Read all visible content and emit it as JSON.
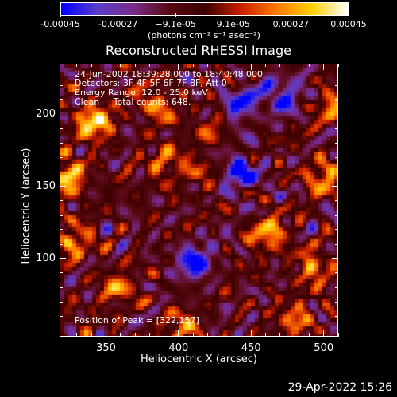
{
  "colorbar": {
    "ticks": [
      "-0.00045",
      "-0.00027",
      "−9.1e-05",
      "9.1e-05",
      "0.00027",
      "0.00045"
    ],
    "unit_label": "(photons cm⁻² s⁻¹ asec⁻²)",
    "gradient": [
      "#0000ff",
      "#5a3fcc",
      "#7a2a8a",
      "#5a0a14",
      "#3a0000",
      "#c81e00",
      "#ff7800",
      "#ffd000",
      "#ffffff"
    ]
  },
  "title": "Reconstructed RHESSI Image",
  "annotations": {
    "line1": "24-Jun-2002 18:39:28.000 to 18:40:48.000",
    "line2": "Detectors: 3F 4F 5F 6F 7F 8F, Att 0",
    "line3": "Energy Range: 12.0 - 25.0 keV",
    "line4": "Clean     Total counts: 648.",
    "peak": "Position of Peak = [322,157]"
  },
  "footer": {
    "timestamp": "29-Apr-2022 15:26"
  },
  "chart_data": {
    "type": "heatmap",
    "title": "Reconstructed RHESSI Image",
    "xlabel": "Heliocentric X (arcsec)",
    "ylabel": "Heliocentric Y (arcsec)",
    "xlim": [
      318,
      510
    ],
    "ylim": [
      46,
      235
    ],
    "xticks": [
      "350",
      "400",
      "450",
      "500"
    ],
    "yticks": [
      "200",
      "150",
      "100"
    ],
    "colorbar_range": [
      -0.00045,
      0.00045
    ],
    "peak_position": [
      322,
      157
    ],
    "bright_regions": [
      {
        "x": 340,
        "y": 197,
        "value": 0.00045
      },
      {
        "x": 322,
        "y": 157,
        "value": 0.00045
      },
      {
        "x": 325,
        "y": 112,
        "value": 0.0003
      },
      {
        "x": 383,
        "y": 208,
        "value": 0.0003
      },
      {
        "x": 390,
        "y": 168,
        "value": 0.00027
      },
      {
        "x": 355,
        "y": 80,
        "value": 0.00027
      },
      {
        "x": 415,
        "y": 160,
        "value": 0.0002
      },
      {
        "x": 425,
        "y": 195,
        "value": 0.0002
      },
      {
        "x": 460,
        "y": 118,
        "value": 0.00035
      },
      {
        "x": 498,
        "y": 158,
        "value": 0.0003
      },
      {
        "x": 492,
        "y": 95,
        "value": 0.0003
      },
      {
        "x": 480,
        "y": 60,
        "value": 0.00027
      },
      {
        "x": 400,
        "y": 52,
        "value": 0.00025
      },
      {
        "x": 505,
        "y": 205,
        "value": 0.00025
      }
    ],
    "dim_regions": [
      {
        "x": 440,
        "y": 160,
        "value": -0.00045
      },
      {
        "x": 440,
        "y": 208,
        "value": -0.0004
      },
      {
        "x": 410,
        "y": 100,
        "value": -0.0004
      },
      {
        "x": 470,
        "y": 215,
        "value": -0.00035
      }
    ]
  }
}
